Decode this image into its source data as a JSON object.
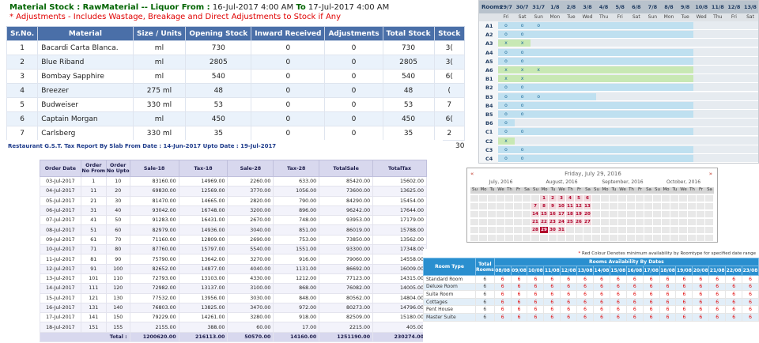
{
  "stock": {
    "title_bold": "Material Stock : RawMaterial -- Liquor From :",
    "from": "16-Jul-2017 4:00 AM",
    "to_label": "To",
    "to": "17-Jul-2017 4:00 AM",
    "note": "* Adjustments - Includes Wastage, Breakage and Direct Adjustments to Stock if Any",
    "headers": [
      "Sr.No.",
      "Material",
      "Size / Units",
      "Opening Stock",
      "Inward Received",
      "Adjustments",
      "Total Stock",
      "Stock"
    ],
    "rows": [
      [
        "1",
        "Bacardi Carta Blanca.",
        "ml",
        "730",
        "0",
        "0",
        "730",
        "3("
      ],
      [
        "2",
        "Blue Riband",
        "ml",
        "2805",
        "0",
        "0",
        "2805",
        "3("
      ],
      [
        "3",
        "Bombay Sapphire",
        "ml",
        "540",
        "0",
        "0",
        "540",
        "6("
      ],
      [
        "4",
        "Breezer",
        "275 ml",
        "48",
        "0",
        "0",
        "48",
        "("
      ],
      [
        "5",
        "Budweiser",
        "330 ml",
        "53",
        "0",
        "0",
        "53",
        "7"
      ],
      [
        "6",
        "Captain Morgan",
        "ml",
        "450",
        "0",
        "0",
        "450",
        "6("
      ],
      [
        "7",
        "Carlsberg",
        "330 ml",
        "35",
        "0",
        "0",
        "35",
        "2"
      ]
    ],
    "extra_total": "0",
    "extra_stock": "30"
  },
  "rooms_grid": {
    "label": "Rooms",
    "dates": [
      "29/7",
      "30/7",
      "31/7",
      "1/8",
      "2/8",
      "3/8",
      "4/8",
      "5/8",
      "6/8",
      "7/8",
      "8/8",
      "9/8",
      "10/8",
      "11/8",
      "12/8",
      "13/8"
    ],
    "weekdays": [
      "Fri",
      "Sat",
      "Sun",
      "Mon",
      "Tue",
      "Wed",
      "Thu",
      "Fri",
      "Sat",
      "Sun",
      "Mon",
      "Tue",
      "Wed",
      "Thu",
      "Fri",
      "Sat"
    ],
    "rooms": [
      "A1",
      "A2",
      "A3",
      "A4",
      "A5",
      "A6",
      "B1",
      "B2",
      "B3",
      "B4",
      "B5",
      "B6",
      "C1",
      "C2",
      "C3",
      "C4"
    ],
    "status_free": "o",
    "status_booked": "x",
    "colors": {
      "free": "#bfe0f0",
      "booked": "#c8e8b4",
      "header": "#b8c2cc"
    }
  },
  "gst": {
    "title": "Restaurant G.S.T. Tax Report By Slab From Date : 14-Jun-2017 Upto Date : 19-Jul-2017",
    "headers": [
      "Order Date",
      "Order No From",
      "Order No Upto",
      "Sale-18",
      "Tax-18",
      "Sale-28",
      "Tax-28",
      "TotalSale",
      "TotalTax"
    ],
    "rows": [
      [
        "03-Jul-2017",
        "1",
        "10",
        "83160.00",
        "14969.00",
        "2260.00",
        "633.00",
        "85420.00",
        "15602.00"
      ],
      [
        "04-Jul-2017",
        "11",
        "20",
        "69830.00",
        "12569.00",
        "3770.00",
        "1056.00",
        "73600.00",
        "13625.00"
      ],
      [
        "05-Jul-2017",
        "21",
        "30",
        "81470.00",
        "14665.00",
        "2820.00",
        "790.00",
        "84290.00",
        "15454.00"
      ],
      [
        "06-Jul-2017",
        "31",
        "40",
        "93042.00",
        "16748.00",
        "3200.00",
        "896.00",
        "96242.00",
        "17644.00"
      ],
      [
        "07-Jul-2017",
        "41",
        "50",
        "91283.00",
        "16431.00",
        "2670.00",
        "748.00",
        "93953.00",
        "17179.00"
      ],
      [
        "08-Jul-2017",
        "51",
        "60",
        "82979.00",
        "14936.00",
        "3040.00",
        "851.00",
        "86019.00",
        "15788.00"
      ],
      [
        "09-Jul-2017",
        "61",
        "70",
        "71160.00",
        "12809.00",
        "2690.00",
        "753.00",
        "73850.00",
        "13562.00"
      ],
      [
        "10-Jul-2017",
        "71",
        "80",
        "87760.00",
        "15797.00",
        "5540.00",
        "1551.00",
        "93300.00",
        "17348.00"
      ],
      [
        "11-Jul-2017",
        "81",
        "90",
        "75790.00",
        "13642.00",
        "3270.00",
        "916.00",
        "79060.00",
        "14558.00"
      ],
      [
        "12-Jul-2017",
        "91",
        "100",
        "82652.00",
        "14877.00",
        "4040.00",
        "1131.00",
        "86692.00",
        "16009.00"
      ],
      [
        "13-Jul-2017",
        "101",
        "110",
        "72793.00",
        "13103.00",
        "4330.00",
        "1212.00",
        "77123.00",
        "14315.00"
      ],
      [
        "14-Jul-2017",
        "111",
        "120",
        "72982.00",
        "13137.00",
        "3100.00",
        "868.00",
        "76082.00",
        "14005.00"
      ],
      [
        "15-Jul-2017",
        "121",
        "130",
        "77532.00",
        "13956.00",
        "3030.00",
        "848.00",
        "80562.00",
        "14804.00"
      ],
      [
        "16-Jul-2017",
        "131",
        "140",
        "76803.00",
        "13825.00",
        "3470.00",
        "972.00",
        "80273.00",
        "14796.00"
      ],
      [
        "17-Jul-2017",
        "141",
        "150",
        "79229.00",
        "14261.00",
        "3280.00",
        "918.00",
        "82509.00",
        "15180.00"
      ],
      [
        "18-Jul-2017",
        "151",
        "155",
        "2155.00",
        "388.00",
        "60.00",
        "17.00",
        "2215.00",
        "405.00"
      ]
    ],
    "total_label": "Total :",
    "totals": [
      "1200620.00",
      "216113.00",
      "50570.00",
      "14160.00",
      "1251190.00",
      "230274.00"
    ]
  },
  "calendar": {
    "title": "Friday, July 29, 2016",
    "prev": "«",
    "next": "»",
    "months": [
      "July, 2016",
      "August, 2016",
      "September, 2016",
      "October, 2016"
    ],
    "weekdays": [
      "Su",
      "Mo",
      "Tu",
      "We",
      "Th",
      "Fr",
      "Sa"
    ],
    "selected_day": "29",
    "red_days": [
      "1",
      "2",
      "3",
      "4",
      "5",
      "6",
      "7",
      "8",
      "9",
      "10",
      "11",
      "12",
      "13",
      "14",
      "15",
      "16",
      "17",
      "18",
      "19",
      "20",
      "21",
      "22",
      "23",
      "24",
      "25",
      "26",
      "27",
      "28",
      "29",
      "30",
      "31"
    ]
  },
  "availability": {
    "note_star": "*",
    "note": "Red Colour Denotes minimum availability by Roomtype for specified date range",
    "title": "Rooms Availability By Dates",
    "room_type_header": "Room Type",
    "total_rooms_header": "Total Rooms",
    "dates": [
      "08/08",
      "09/08",
      "10/08",
      "11/08",
      "12/08",
      "13/08",
      "14/08",
      "15/08",
      "16/08",
      "17/08",
      "18/08",
      "19/08",
      "20/08",
      "21/08",
      "22/08",
      "23/08"
    ],
    "rows": [
      {
        "name": "Standard Room",
        "total": "6",
        "vals": [
          "6",
          "6",
          "6",
          "6",
          "6",
          "6",
          "6",
          "6",
          "6",
          "6",
          "6",
          "6",
          "6",
          "6",
          "6",
          "6"
        ]
      },
      {
        "name": "Deluxe Room",
        "total": "6",
        "vals": [
          "6",
          "6",
          "6",
          "6",
          "6",
          "6",
          "6",
          "6",
          "6",
          "6",
          "6",
          "6",
          "6",
          "6",
          "6",
          "6"
        ]
      },
      {
        "name": "Suite Room",
        "total": "6",
        "vals": [
          "6",
          "6",
          "6",
          "6",
          "6",
          "6",
          "6",
          "6",
          "6",
          "6",
          "6",
          "6",
          "6",
          "6",
          "6",
          "6"
        ]
      },
      {
        "name": "Cottages",
        "total": "6",
        "vals": [
          "6",
          "6",
          "6",
          "6",
          "6",
          "6",
          "6",
          "6",
          "6",
          "6",
          "6",
          "6",
          "6",
          "6",
          "6",
          "6"
        ]
      },
      {
        "name": "Pent House",
        "total": "6",
        "vals": [
          "6",
          "6",
          "6",
          "6",
          "6",
          "6",
          "6",
          "6",
          "6",
          "6",
          "6",
          "6",
          "6",
          "6",
          "6",
          "6"
        ]
      },
      {
        "name": "Master Suite",
        "total": "6",
        "vals": [
          "6",
          "6",
          "6",
          "6",
          "6",
          "6",
          "6",
          "6",
          "6",
          "6",
          "6",
          "6",
          "6",
          "6",
          "6",
          "6"
        ]
      }
    ]
  }
}
